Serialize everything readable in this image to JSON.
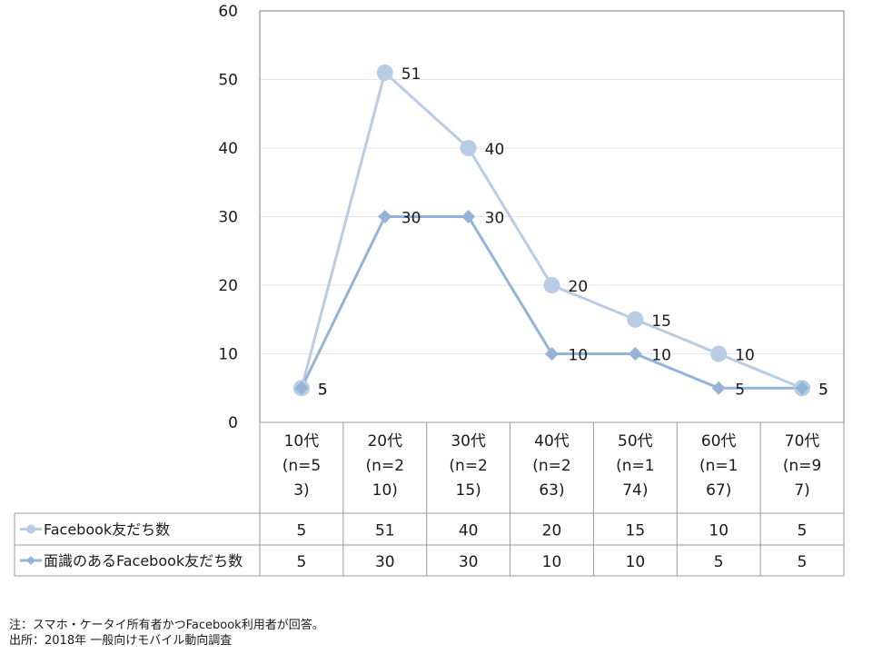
{
  "chart_data": {
    "type": "line",
    "categories": [
      [
        "10代",
        "(n=5",
        "3)"
      ],
      [
        "20代",
        "(n=2",
        "10)"
      ],
      [
        "30代",
        "(n=2",
        "15)"
      ],
      [
        "40代",
        "(n=2",
        "63)"
      ],
      [
        "50代",
        "(n=1",
        "74)"
      ],
      [
        "60代",
        "(n=1",
        "67)"
      ],
      [
        "70代",
        "(n=9",
        "7)"
      ]
    ],
    "ylim": [
      0,
      60
    ],
    "yticks": [
      0,
      10,
      20,
      30,
      40,
      50,
      60
    ],
    "grid": true,
    "series": [
      {
        "name": "Facebook友だち数",
        "values": [
          5,
          51,
          40,
          20,
          15,
          10,
          5
        ],
        "marker": "circle",
        "color": "#b8cce4"
      },
      {
        "name": "面識のあるFacebook友だち数",
        "values": [
          5,
          30,
          30,
          10,
          10,
          5,
          5
        ],
        "marker": "diamond",
        "color": "#95b3d7"
      }
    ],
    "legend": "data-table"
  },
  "footnotes": {
    "note": "注：スマホ・ケータイ所有者かつFacebook利用者が回答。",
    "source": "出所：2018年 一般向けモバイル動向調査"
  }
}
